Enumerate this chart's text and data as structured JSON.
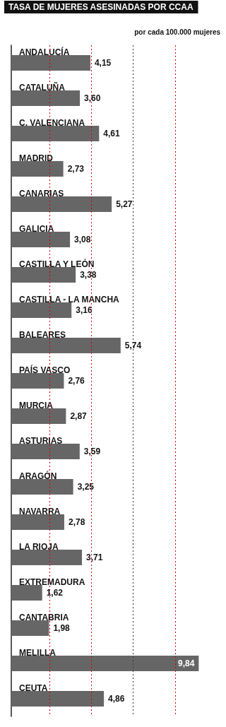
{
  "chart_data": {
    "type": "bar",
    "orientation": "horizontal",
    "title": "TASA DE MUJERES ASESINADAS POR CCAA",
    "subtitle": "por cada 100.000 mujeres",
    "categories": [
      "ANDALUCÍA",
      "CATALUÑA",
      "C. VALENCIANA",
      "MADRID",
      "CANARIAS",
      "GALICIA",
      "CASTILLA Y LEÓN",
      "CASTILLA - LA MANCHA",
      "BALEARES",
      "PAÍS VASCO",
      "MURCIA",
      "ASTURIAS",
      "ARAGÓN",
      "NAVARRA",
      "LA RIOJA",
      "EXTREMADURA",
      "CANTABRIA",
      "MELILLA",
      "CEUTA"
    ],
    "values": [
      4.15,
      3.6,
      4.61,
      2.73,
      5.27,
      3.08,
      3.38,
      3.16,
      5.74,
      2.76,
      2.87,
      3.59,
      3.25,
      2.78,
      3.71,
      1.62,
      1.98,
      9.84,
      4.86
    ],
    "value_labels": [
      "4,15",
      "3,60",
      "4,61",
      "2,73",
      "5,27",
      "3,08",
      "3,38",
      "3,16",
      "5,74",
      "2,76",
      "2,87",
      "3,59",
      "3,25",
      "2,78",
      "3,71",
      "1,62",
      "1,98",
      "9,84",
      "4,86"
    ],
    "color": "#666666",
    "xlim": [
      0,
      9.9
    ],
    "ref_lines": [
      {
        "axis": "x",
        "value": 2,
        "color": "#cc0000",
        "line_style": "dotted"
      },
      {
        "axis": "x",
        "value": 4.2,
        "color": "#cc0000",
        "line_style": "dotted"
      },
      {
        "axis": "x",
        "value": 6.4,
        "color": "#333333",
        "line_style": "dotted"
      },
      {
        "axis": "x",
        "value": 8.6,
        "color": "#cc0000",
        "line_style": "dotted"
      }
    ],
    "grid": false
  }
}
